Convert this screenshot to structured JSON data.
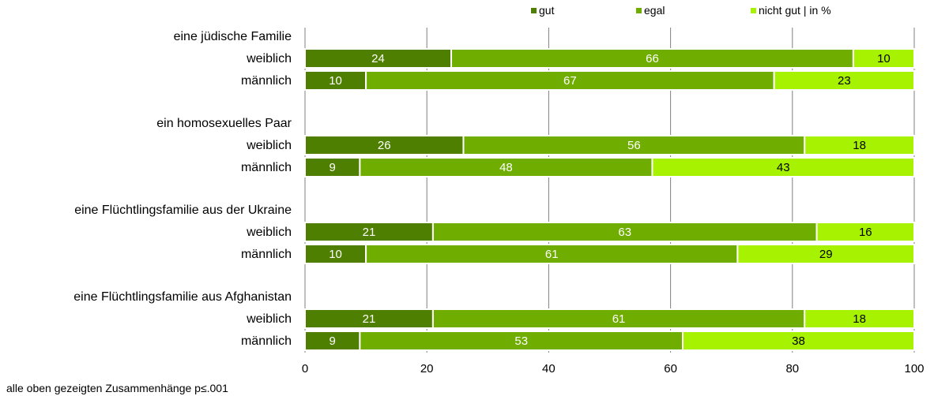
{
  "chart_data": {
    "type": "bar",
    "orientation": "horizontal",
    "stacked": true,
    "legend": [
      {
        "name": "gut",
        "color": "#4f7f00"
      },
      {
        "name": "egal",
        "color": "#6fae00"
      },
      {
        "name": "nicht gut | in %",
        "color": "#a6f200"
      }
    ],
    "legend_position": "top-right",
    "groups": [
      {
        "label": "eine jüdische Familie",
        "rows": [
          {
            "label": "weiblich",
            "values": [
              24,
              66,
              10
            ]
          },
          {
            "label": "männlich",
            "values": [
              10,
              67,
              23
            ]
          }
        ]
      },
      {
        "label": "ein homosexuelles Paar",
        "rows": [
          {
            "label": "weiblich",
            "values": [
              26,
              56,
              18
            ]
          },
          {
            "label": "männlich",
            "values": [
              9,
              48,
              43
            ]
          }
        ]
      },
      {
        "label": "eine Flüchtlingsfamilie aus der Ukraine",
        "rows": [
          {
            "label": "weiblich",
            "values": [
              21,
              63,
              16
            ]
          },
          {
            "label": "männlich",
            "values": [
              10,
              61,
              29
            ]
          }
        ]
      },
      {
        "label": "eine Flüchtlingsfamilie aus Afghanistan",
        "rows": [
          {
            "label": "weiblich",
            "values": [
              21,
              61,
              18
            ]
          },
          {
            "label": "männlich",
            "values": [
              9,
              53,
              38
            ]
          }
        ]
      }
    ],
    "xlim": [
      0,
      100
    ],
    "xticks": [
      0,
      20,
      40,
      60,
      80,
      100
    ],
    "grid": true,
    "note": "alle oben gezeigten Zusammenhänge p≤.001"
  }
}
